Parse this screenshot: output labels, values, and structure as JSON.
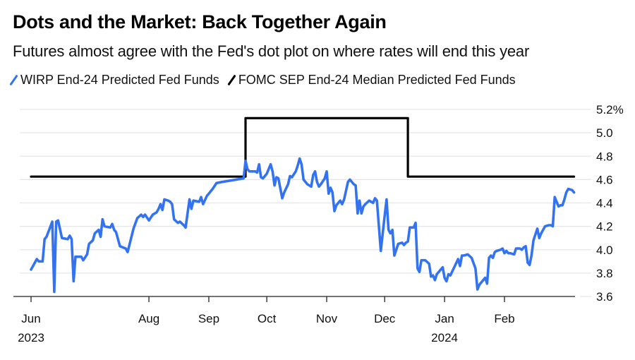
{
  "chart_data": {
    "type": "line",
    "title": "Dots and the Market: Back Together Again",
    "subtitle": "Futures almost agree with the Fed's dot plot on where rates will end this year",
    "xlabel": "",
    "ylabel": "",
    "ylim": [
      3.6,
      5.2
    ],
    "y_ticks": [
      5.2,
      5.0,
      4.8,
      4.6,
      4.4,
      4.2,
      4.0,
      3.8,
      3.6
    ],
    "y_tick_labels": [
      "5.2%",
      "5.0",
      "4.8",
      "4.6",
      "4.4",
      "4.2",
      "4.0",
      "3.8",
      "3.6"
    ],
    "xlim": [
      "2023-06-01",
      "2024-03-05"
    ],
    "x_ticks": [
      {
        "date": "2023-06-01",
        "label": "Jun",
        "sublabel": "2023"
      },
      {
        "date": "2023-08-01",
        "label": "Aug",
        "sublabel": ""
      },
      {
        "date": "2023-09-01",
        "label": "Sep",
        "sublabel": ""
      },
      {
        "date": "2023-10-01",
        "label": "Oct",
        "sublabel": ""
      },
      {
        "date": "2023-11-01",
        "label": "Nov",
        "sublabel": ""
      },
      {
        "date": "2023-12-01",
        "label": "Dec",
        "sublabel": ""
      },
      {
        "date": "2024-01-01",
        "label": "Jan",
        "sublabel": "2024"
      },
      {
        "date": "2024-02-01",
        "label": "Feb",
        "sublabel": ""
      }
    ],
    "grid": true,
    "legend_position": "top-left",
    "series": [
      {
        "name": "WIRP End-24 Predicted Fed Funds",
        "color": "#3373f0",
        "points": [
          [
            "2023-06-01",
            3.83
          ],
          [
            "2023-06-04",
            3.92
          ],
          [
            "2023-06-05",
            3.9
          ],
          [
            "2023-06-07",
            3.9
          ],
          [
            "2023-06-08",
            4.09
          ],
          [
            "2023-06-09",
            4.11
          ],
          [
            "2023-06-12",
            4.24
          ],
          [
            "2023-06-13",
            3.64
          ],
          [
            "2023-06-14",
            4.24
          ],
          [
            "2023-06-15",
            4.25
          ],
          [
            "2023-06-17",
            4.1
          ],
          [
            "2023-06-20",
            4.09
          ],
          [
            "2023-06-21",
            4.12
          ],
          [
            "2023-06-22",
            4.09
          ],
          [
            "2023-06-23",
            3.73
          ],
          [
            "2023-06-24",
            3.94
          ],
          [
            "2023-06-27",
            3.94
          ],
          [
            "2023-06-28",
            3.91
          ],
          [
            "2023-06-30",
            3.96
          ],
          [
            "2023-07-01",
            4.05
          ],
          [
            "2023-07-03",
            4.08
          ],
          [
            "2023-07-04",
            4.14
          ],
          [
            "2023-07-06",
            4.17
          ],
          [
            "2023-07-07",
            4.11
          ],
          [
            "2023-07-08",
            4.26
          ],
          [
            "2023-07-09",
            4.2
          ],
          [
            "2023-07-12",
            4.19
          ],
          [
            "2023-07-13",
            4.22
          ],
          [
            "2023-07-14",
            4.17
          ],
          [
            "2023-07-15",
            4.15
          ],
          [
            "2023-07-17",
            4.03
          ],
          [
            "2023-07-20",
            4.01
          ],
          [
            "2023-07-21",
            3.98
          ],
          [
            "2023-07-24",
            4.18
          ],
          [
            "2023-07-26",
            4.27
          ],
          [
            "2023-07-28",
            4.3
          ],
          [
            "2023-07-29",
            4.28
          ],
          [
            "2023-07-30",
            4.3
          ],
          [
            "2023-08-01",
            4.25
          ],
          [
            "2023-08-03",
            4.3
          ],
          [
            "2023-08-05",
            4.32
          ],
          [
            "2023-08-06",
            4.35
          ],
          [
            "2023-08-07",
            4.39
          ],
          [
            "2023-08-08",
            4.34
          ],
          [
            "2023-08-09",
            4.43
          ],
          [
            "2023-08-11",
            4.42
          ],
          [
            "2023-08-12",
            4.41
          ],
          [
            "2023-08-13",
            4.39
          ],
          [
            "2023-08-14",
            4.26
          ],
          [
            "2023-08-16",
            4.23
          ],
          [
            "2023-08-17",
            4.24
          ],
          [
            "2023-08-19",
            4.21
          ],
          [
            "2023-08-20",
            4.19
          ],
          [
            "2023-08-21",
            4.31
          ],
          [
            "2023-08-22",
            4.43
          ],
          [
            "2023-08-23",
            4.35
          ],
          [
            "2023-08-24",
            4.42
          ],
          [
            "2023-08-27",
            4.41
          ],
          [
            "2023-08-28",
            4.45
          ],
          [
            "2023-08-29",
            4.39
          ],
          [
            "2023-08-31",
            4.46
          ],
          [
            "2023-09-01",
            4.48
          ],
          [
            "2023-09-03",
            4.52
          ],
          [
            "2023-09-05",
            4.57
          ],
          [
            "2023-09-08",
            4.58
          ],
          [
            "2023-09-19",
            4.61
          ],
          [
            "2023-09-20",
            4.76
          ],
          [
            "2023-09-21",
            4.69
          ],
          [
            "2023-09-22",
            4.67
          ],
          [
            "2023-09-25",
            4.67
          ],
          [
            "2023-09-26",
            4.66
          ],
          [
            "2023-09-27",
            4.73
          ],
          [
            "2023-09-28",
            4.62
          ],
          [
            "2023-09-29",
            4.61
          ],
          [
            "2023-10-01",
            4.65
          ],
          [
            "2023-10-03",
            4.73
          ],
          [
            "2023-10-04",
            4.67
          ],
          [
            "2023-10-05",
            4.55
          ],
          [
            "2023-10-06",
            4.62
          ],
          [
            "2023-10-07",
            4.61
          ],
          [
            "2023-10-09",
            4.44
          ],
          [
            "2023-10-10",
            4.49
          ],
          [
            "2023-10-12",
            4.56
          ],
          [
            "2023-10-13",
            4.63
          ],
          [
            "2023-10-14",
            4.62
          ],
          [
            "2023-10-16",
            4.67
          ],
          [
            "2023-10-17",
            4.72
          ],
          [
            "2023-10-18",
            4.78
          ],
          [
            "2023-10-19",
            4.73
          ],
          [
            "2023-10-20",
            4.6
          ],
          [
            "2023-10-22",
            4.56
          ],
          [
            "2023-10-24",
            4.54
          ],
          [
            "2023-10-25",
            4.64
          ],
          [
            "2023-10-26",
            4.67
          ],
          [
            "2023-10-27",
            4.58
          ],
          [
            "2023-10-28",
            4.54
          ],
          [
            "2023-10-29",
            4.56
          ],
          [
            "2023-10-31",
            4.61
          ],
          [
            "2023-11-01",
            4.67
          ],
          [
            "2023-11-02",
            4.48
          ],
          [
            "2023-11-03",
            4.53
          ],
          [
            "2023-11-04",
            4.49
          ],
          [
            "2023-11-05",
            4.33
          ],
          [
            "2023-11-06",
            4.38
          ],
          [
            "2023-11-08",
            4.42
          ],
          [
            "2023-11-09",
            4.39
          ],
          [
            "2023-11-10",
            4.43
          ],
          [
            "2023-11-12",
            4.58
          ],
          [
            "2023-11-13",
            4.6
          ],
          [
            "2023-11-15",
            4.56
          ],
          [
            "2023-11-16",
            4.55
          ],
          [
            "2023-11-17",
            4.31
          ],
          [
            "2023-11-18",
            4.42
          ],
          [
            "2023-11-19",
            4.31
          ],
          [
            "2023-11-20",
            4.37
          ],
          [
            "2023-11-21",
            4.39
          ],
          [
            "2023-11-23",
            4.42
          ],
          [
            "2023-11-25",
            4.4
          ],
          [
            "2023-11-26",
            4.44
          ],
          [
            "2023-11-27",
            4.42
          ],
          [
            "2023-11-29",
            3.99
          ],
          [
            "2023-12-01",
            4.29
          ],
          [
            "2023-12-02",
            4.43
          ],
          [
            "2023-12-03",
            4.17
          ],
          [
            "2023-12-04",
            4.14
          ],
          [
            "2023-12-05",
            4.17
          ],
          [
            "2023-12-06",
            3.95
          ],
          [
            "2023-12-08",
            4.05
          ],
          [
            "2023-12-10",
            4.06
          ],
          [
            "2023-12-11",
            4.04
          ],
          [
            "2023-12-12",
            4.06
          ],
          [
            "2023-12-13",
            4.07
          ],
          [
            "2023-12-14",
            4.19
          ],
          [
            "2023-12-15",
            4.19
          ],
          [
            "2023-12-16",
            4.19
          ],
          [
            "2023-12-17",
            4.23
          ],
          [
            "2023-12-18",
            3.84
          ],
          [
            "2023-12-19",
            3.81
          ],
          [
            "2023-12-20",
            3.91
          ],
          [
            "2023-12-22",
            3.91
          ],
          [
            "2023-12-24",
            3.88
          ],
          [
            "2023-12-25",
            3.77
          ],
          [
            "2023-12-26",
            3.78
          ],
          [
            "2023-12-27",
            3.74
          ],
          [
            "2023-12-28",
            3.79
          ],
          [
            "2023-12-31",
            3.85
          ],
          [
            "2024-01-01",
            3.76
          ],
          [
            "2024-01-02",
            3.73
          ],
          [
            "2024-01-03",
            3.79
          ],
          [
            "2024-01-04",
            3.78
          ],
          [
            "2024-01-06",
            3.85
          ],
          [
            "2024-01-08",
            3.92
          ],
          [
            "2024-01-09",
            3.86
          ],
          [
            "2024-01-10",
            3.95
          ],
          [
            "2024-01-11",
            3.95
          ],
          [
            "2024-01-13",
            3.96
          ],
          [
            "2024-01-15",
            3.93
          ],
          [
            "2024-01-17",
            3.84
          ],
          [
            "2024-01-18",
            3.66
          ],
          [
            "2024-01-19",
            3.7
          ],
          [
            "2024-01-21",
            3.74
          ],
          [
            "2024-01-22",
            3.76
          ],
          [
            "2024-01-23",
            3.71
          ],
          [
            "2024-01-24",
            3.93
          ],
          [
            "2024-01-25",
            3.95
          ],
          [
            "2024-01-26",
            3.93
          ],
          [
            "2024-01-27",
            3.98
          ],
          [
            "2024-01-28",
            3.99
          ],
          [
            "2024-01-30",
            4.0
          ],
          [
            "2024-01-31",
            4.01
          ],
          [
            "2024-02-01",
            3.97
          ],
          [
            "2024-02-02",
            3.99
          ],
          [
            "2024-02-03",
            3.97
          ],
          [
            "2024-02-04",
            3.97
          ],
          [
            "2024-02-06",
            3.96
          ],
          [
            "2024-02-07",
            4.01
          ],
          [
            "2024-02-09",
            4.01
          ],
          [
            "2024-02-10",
            4.0
          ],
          [
            "2024-02-11",
            4.02
          ],
          [
            "2024-02-12",
            4.03
          ],
          [
            "2024-02-13",
            3.89
          ],
          [
            "2024-02-14",
            3.87
          ],
          [
            "2024-02-15",
            3.95
          ],
          [
            "2024-02-16",
            4.08
          ],
          [
            "2024-02-18",
            4.18
          ],
          [
            "2024-02-19",
            4.1
          ],
          [
            "2024-02-20",
            4.14
          ],
          [
            "2024-02-22",
            4.2
          ],
          [
            "2024-02-24",
            4.21
          ],
          [
            "2024-02-25",
            4.21
          ],
          [
            "2024-02-26",
            4.2
          ],
          [
            "2024-02-27",
            4.45
          ],
          [
            "2024-02-28",
            4.41
          ],
          [
            "2024-02-29",
            4.37
          ],
          [
            "2024-03-01",
            4.38
          ],
          [
            "2024-03-02",
            4.38
          ],
          [
            "2024-03-03",
            4.43
          ],
          [
            "2024-03-04",
            4.49
          ],
          [
            "2024-03-05",
            4.52
          ],
          [
            "2024-03-07",
            4.51
          ],
          [
            "2024-03-08",
            4.49
          ]
        ]
      },
      {
        "name": "FOMC SEP End-24 Median Predicted Fed Funds",
        "color": "#000000",
        "step": true,
        "points": [
          [
            "2023-06-01",
            4.625
          ],
          [
            "2023-09-20",
            4.625
          ],
          [
            "2023-09-20",
            5.125
          ],
          [
            "2023-12-13",
            5.125
          ],
          [
            "2023-12-13",
            4.625
          ],
          [
            "2024-03-08",
            4.625
          ]
        ]
      }
    ]
  }
}
